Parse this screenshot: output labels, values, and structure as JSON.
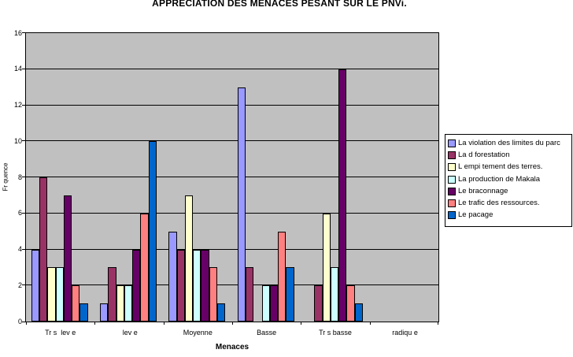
{
  "chart_data": {
    "type": "bar",
    "title": "APPRECIATION DES MENACES PESANT SUR LE PNVi.",
    "xlabel": "Menaces",
    "ylabel": "Fr quence",
    "ylim": [
      0,
      16
    ],
    "ytick_step": 2,
    "grid": true,
    "legend_position": "right",
    "plot_bg": "#C0C0C0",
    "gridline_color": "#000000",
    "categories": [
      "Tr s  lev e",
      " lev e",
      "Moyenne",
      "Basse",
      "Tr s basse",
      " radiqu e"
    ],
    "series": [
      {
        "name": "La violation des limites du parc",
        "color": "#9999FF",
        "values": [
          4,
          1,
          5,
          13,
          0,
          0
        ]
      },
      {
        "name": "La d forestation",
        "color": "#993366",
        "values": [
          8,
          3,
          4,
          3,
          2,
          0
        ]
      },
      {
        "name": "L empi tement des terres.",
        "color": "#FFFFCC",
        "values": [
          3,
          2,
          7,
          0,
          6,
          0
        ]
      },
      {
        "name": "La production de Makala",
        "color": "#CCFFFF",
        "values": [
          3,
          2,
          4,
          2,
          3,
          0
        ]
      },
      {
        "name": "Le braconnage",
        "color": "#660066",
        "values": [
          7,
          4,
          4,
          2,
          14,
          0
        ]
      },
      {
        "name": "Le trafic des ressources.",
        "color": "#FF8080",
        "values": [
          2,
          6,
          3,
          5,
          2,
          0
        ]
      },
      {
        "name": "Le pacage",
        "color": "#0066CC",
        "values": [
          1,
          10,
          1,
          3,
          1,
          0
        ]
      }
    ]
  }
}
